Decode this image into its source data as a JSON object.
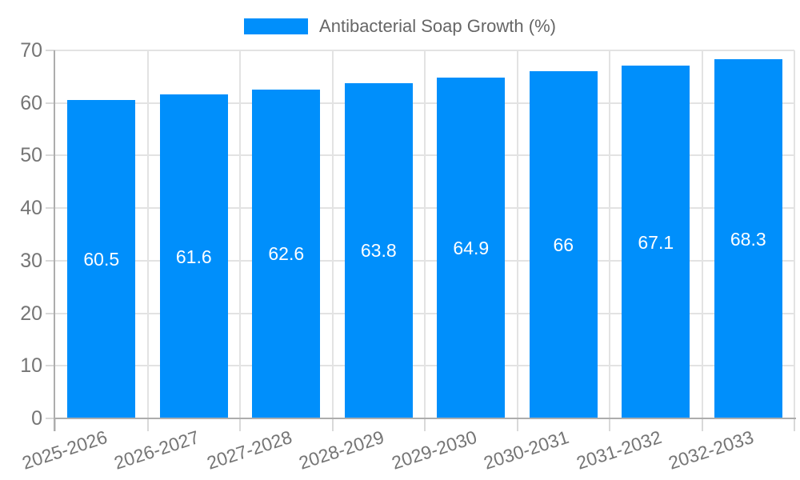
{
  "chart_data": {
    "type": "bar",
    "title": "",
    "legend": "Antibacterial Soap Growth (%)",
    "legend_position": "top-center",
    "categories": [
      "2025-2026",
      "2026-2027",
      "2027-2028",
      "2028-2029",
      "2029-2030",
      "2030-2031",
      "2031-2032",
      "2032-2033"
    ],
    "values": [
      60.5,
      61.6,
      62.6,
      63.8,
      64.9,
      66,
      67.1,
      68.3
    ],
    "data_labels": [
      "60.5",
      "61.6",
      "62.6",
      "63.8",
      "64.9",
      "66",
      "67.1",
      "68.3"
    ],
    "xlabel": "",
    "ylabel": "",
    "ylim": [
      0,
      70
    ],
    "yticks": [
      0,
      10,
      20,
      30,
      40,
      50,
      60,
      70
    ],
    "grid": "both",
    "colors": {
      "bar": "#008ffb",
      "grid": "#e3e3e3",
      "axis": "#adadad",
      "tick": "#d9d9d9",
      "tick_label": "#757575",
      "legend_text": "#666666",
      "data_label": "#ffffff",
      "background": "#ffffff"
    }
  }
}
